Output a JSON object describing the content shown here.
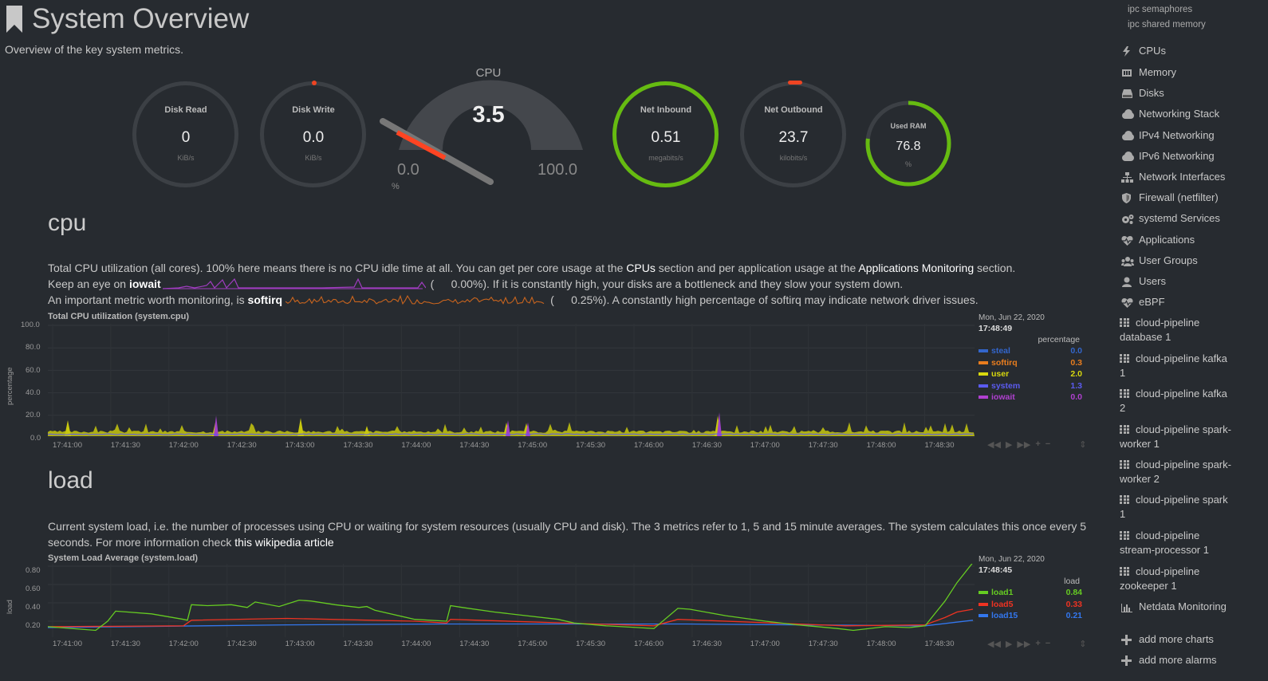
{
  "header": {
    "title": "System Overview",
    "subtitle": "Overview of the key system metrics."
  },
  "gauges": {
    "disk_read": {
      "label": "Disk Read",
      "value": "0",
      "unit": "KiB/s"
    },
    "disk_write": {
      "label": "Disk Write",
      "value": "0.0",
      "unit": "KiB/s"
    },
    "cpu": {
      "label": "CPU",
      "value": "3.5",
      "min": "0.0",
      "max": "100.0",
      "unit": "%",
      "level": 3.5
    },
    "net_inbound": {
      "label": "Net Inbound",
      "value": "0.51",
      "unit": "megabits/s",
      "level": 1.0
    },
    "net_outbound": {
      "label": "Net Outbound",
      "value": "23.7",
      "unit": "kilobits/s"
    },
    "used_ram": {
      "label": "Used RAM",
      "value": "76.8",
      "unit": "%",
      "level": 0.768
    }
  },
  "cpu_section": {
    "title": "cpu",
    "desc_1a": "Total CPU utilization (all cores). 100% here means there is no CPU idle time at all. You can get per core usage at the ",
    "link_cpus": "CPUs",
    "desc_1b": " section and per application usage at the ",
    "link_apps": "Applications Monitoring",
    "desc_1c": " section.",
    "desc_2a": "Keep an eye on ",
    "iowait": "iowait",
    "desc_2b": "0.00%). If it is constantly high, your disks are a bottleneck and they slow your system down.",
    "desc_3a": "An important metric worth monitoring, is ",
    "softirq": "softirq",
    "desc_3b": "0.25%). A constantly high percentage of softirq may indicate network driver issues.",
    "paren": "(",
    "chart": {
      "title": "Total CPU utilization (system.cpu)",
      "ylabel": "percentage",
      "y_ticks": [
        "100.0",
        "80.0",
        "60.0",
        "40.0",
        "20.0",
        "0.0"
      ],
      "x_ticks": [
        "17:41:00",
        "17:41:30",
        "17:42:00",
        "17:42:30",
        "17:43:00",
        "17:43:30",
        "17:44:00",
        "17:44:30",
        "17:45:00",
        "17:45:30",
        "17:46:00",
        "17:46:30",
        "17:47:00",
        "17:47:30",
        "17:48:00",
        "17:48:30"
      ],
      "legend_date": "Mon, Jun 22, 2020",
      "legend_time": "17:48:49",
      "legend_unit": "percentage",
      "legend": [
        {
          "name": "steal",
          "value": "0.0",
          "color": "#3366cc"
        },
        {
          "name": "softirq",
          "value": "0.3",
          "color": "#e87d1e"
        },
        {
          "name": "user",
          "value": "2.0",
          "color": "#d8d80e"
        },
        {
          "name": "system",
          "value": "1.3",
          "color": "#5b5bf0"
        },
        {
          "name": "iowait",
          "value": "0.0",
          "color": "#b040d0"
        }
      ]
    }
  },
  "load_section": {
    "title": "load",
    "desc_1": "Current system load, i.e. the number of processes using CPU or waiting for system resources (usually CPU and disk). The 3 metrics refer to 1, 5 and 15 minute averages. The system calculates this once every 5",
    "desc_2": "seconds. For more information check ",
    "link": "this wikipedia article",
    "chart": {
      "title": "System Load Average (system.load)",
      "ylabel": "load",
      "y_ticks": [
        "0.80",
        "0.60",
        "0.40",
        "0.20"
      ],
      "x_ticks": [
        "17:41:00",
        "17:41:30",
        "17:42:00",
        "17:42:30",
        "17:43:00",
        "17:43:30",
        "17:44:00",
        "17:44:30",
        "17:45:00",
        "17:45:30",
        "17:46:00",
        "17:46:30",
        "17:47:00",
        "17:47:30",
        "17:48:00",
        "17:48:30"
      ],
      "legend_date": "Mon, Jun 22, 2020",
      "legend_time": "17:48:45",
      "legend_unit": "load",
      "legend": [
        {
          "name": "load1",
          "value": "0.84",
          "color": "#66cc22"
        },
        {
          "name": "load5",
          "value": "0.33",
          "color": "#ee3322"
        },
        {
          "name": "load15",
          "value": "0.21",
          "color": "#3377ee"
        }
      ]
    }
  },
  "sidebar": {
    "sub_items": [
      "ipc semaphores",
      "ipc shared memory"
    ],
    "items": [
      {
        "label": "CPUs",
        "icon": "bolt-icon"
      },
      {
        "label": "Memory",
        "icon": "memory-icon"
      },
      {
        "label": "Disks",
        "icon": "disk-icon"
      },
      {
        "label": "Networking Stack",
        "icon": "cloud-icon"
      },
      {
        "label": "IPv4 Networking",
        "icon": "cloud-icon"
      },
      {
        "label": "IPv6 Networking",
        "icon": "cloud-icon"
      },
      {
        "label": "Network Interfaces",
        "icon": "sitemap-icon"
      },
      {
        "label": "Firewall (netfilter)",
        "icon": "shield-icon"
      },
      {
        "label": "systemd Services",
        "icon": "cogs-icon"
      },
      {
        "label": "Applications",
        "icon": "heartbeat-icon"
      },
      {
        "label": "User Groups",
        "icon": "users-icon"
      },
      {
        "label": "Users",
        "icon": "user-icon"
      },
      {
        "label": "eBPF",
        "icon": "heartbeat-icon"
      }
    ],
    "apps": [
      {
        "line1": "cloud-pipeline",
        "line2": "database 1"
      },
      {
        "line1": "cloud-pipeline kafka",
        "line2": "1"
      },
      {
        "line1": "cloud-pipeline kafka",
        "line2": "2"
      },
      {
        "line1": "cloud-pipeline spark-",
        "line2": "worker 1"
      },
      {
        "line1": "cloud-pipeline spark-",
        "line2": "worker 2"
      },
      {
        "line1": "cloud-pipeline spark",
        "line2": "1"
      },
      {
        "line1": "cloud-pipeline",
        "line2": "stream-processor 1"
      },
      {
        "line1": "cloud-pipeline",
        "line2": "zookeeper 1"
      }
    ],
    "netdata": "Netdata Monitoring",
    "add_charts": "add more charts",
    "add_alarms": "add more alarms"
  }
}
